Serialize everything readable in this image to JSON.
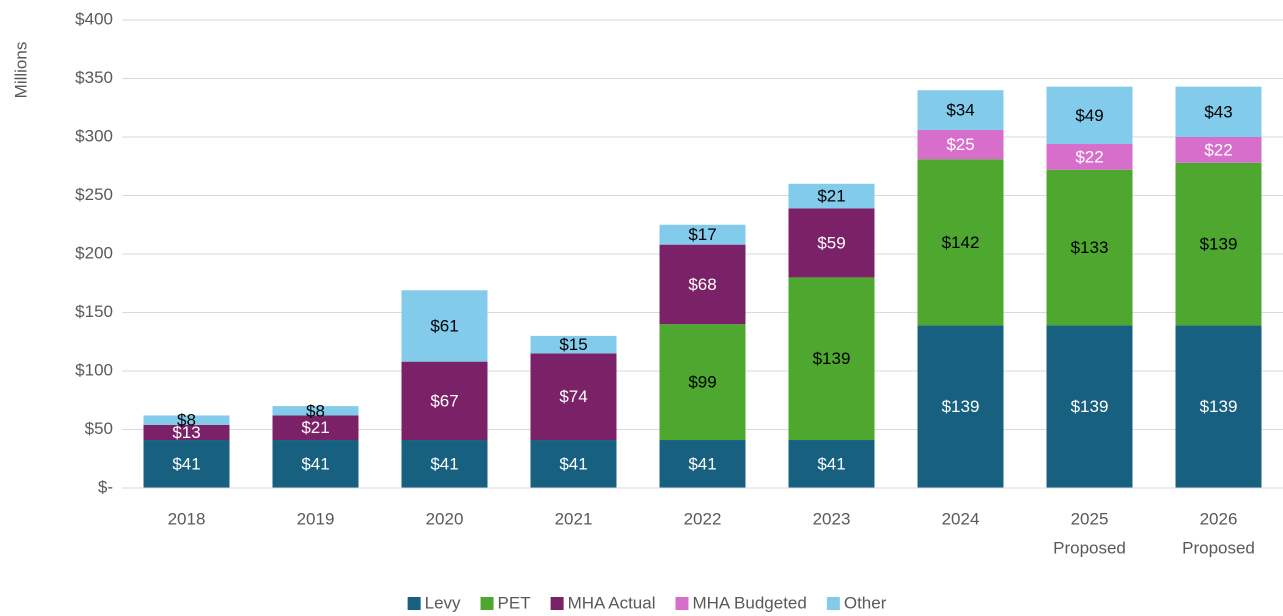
{
  "chart_data": {
    "type": "stacked_bar",
    "y_axis_label": "Millions",
    "categories": [
      "2018",
      "2019",
      "2020",
      "2021",
      "2022",
      "2023",
      "2024",
      [
        "2025",
        "Proposed"
      ],
      [
        "2026",
        "Proposed"
      ]
    ],
    "series": [
      {
        "name": "Levy",
        "color": "#17607f",
        "label_color": "#ffffff",
        "values": [
          41,
          41,
          41,
          41,
          41,
          41,
          139,
          139,
          139
        ],
        "value_labels": [
          "$41",
          "$41",
          "$41",
          "$41",
          "$41",
          "$41",
          "$139",
          "$139",
          "$139"
        ]
      },
      {
        "name": "PET",
        "color": "#4ea72e",
        "label_color": "#000000",
        "values": [
          null,
          null,
          null,
          null,
          99,
          139,
          142,
          133,
          139
        ],
        "value_labels": [
          null,
          null,
          null,
          null,
          "$99",
          "$139",
          "$142",
          "$133",
          "$139"
        ]
      },
      {
        "name": "MHA Actual",
        "color": "#7b2168",
        "label_color": "#ffffff",
        "values": [
          13,
          21,
          67,
          74,
          68,
          59,
          null,
          null,
          null
        ],
        "value_labels": [
          "$13",
          "$21",
          "$67",
          "$74",
          "$68",
          "$59",
          null,
          null,
          null
        ]
      },
      {
        "name": "MHA Budgeted",
        "color": "#d86ecc",
        "label_color": "#ffffff",
        "values": [
          null,
          null,
          null,
          null,
          null,
          null,
          25,
          22,
          22
        ],
        "value_labels": [
          null,
          null,
          null,
          null,
          null,
          null,
          "$25",
          "$22",
          "$22"
        ]
      },
      {
        "name": "Other",
        "color": "#83cbeb",
        "label_color": "#000000",
        "values": [
          8,
          8,
          61,
          15,
          17,
          21,
          34,
          49,
          43
        ],
        "value_labels": [
          "$8",
          "$8",
          "$61",
          "$15",
          "$17",
          "$21",
          "$34",
          "$49",
          "$43"
        ]
      }
    ],
    "ylim": [
      0,
      400
    ],
    "yticks": [
      {
        "value": 0,
        "label": "$-"
      },
      {
        "value": 50,
        "label": "$50"
      },
      {
        "value": 100,
        "label": "$100"
      },
      {
        "value": 150,
        "label": "$150"
      },
      {
        "value": 200,
        "label": "$200"
      },
      {
        "value": 250,
        "label": "$250"
      },
      {
        "value": 300,
        "label": "$300"
      },
      {
        "value": 350,
        "label": "$350"
      },
      {
        "value": 400,
        "label": "$400"
      }
    ],
    "grid": true,
    "legend": "bottom"
  }
}
